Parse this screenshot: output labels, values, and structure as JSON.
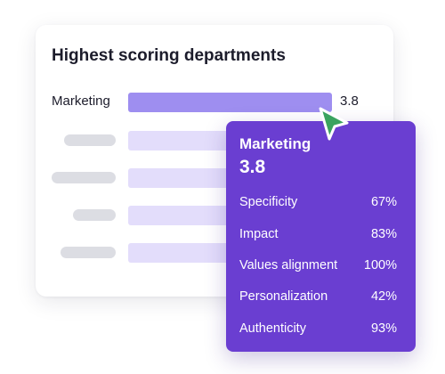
{
  "card": {
    "title": "Highest scoring departments",
    "rows": [
      {
        "label": "Marketing",
        "score": 3.8,
        "value_text": "3.8"
      },
      {
        "label": "",
        "score": null
      },
      {
        "label": "",
        "score": null
      },
      {
        "label": "",
        "score": null
      },
      {
        "label": "",
        "score": null
      }
    ]
  },
  "tooltip": {
    "department": "Marketing",
    "score": "3.8",
    "metrics": [
      {
        "name": "Specificity",
        "value": "67%"
      },
      {
        "name": "Impact",
        "value": "83%"
      },
      {
        "name": "Values alignment",
        "value": "100%"
      },
      {
        "name": "Personalization",
        "value": "42%"
      },
      {
        "name": "Authenticity",
        "value": "93%"
      }
    ]
  },
  "colors": {
    "accent_bar": "#9e8ef0",
    "faint_bar": "#e3ddfb",
    "tooltip_bg": "#6a3ed1",
    "cursor": "#3aa35f"
  },
  "icons": {
    "cursor": "pointer-arrow-icon"
  }
}
